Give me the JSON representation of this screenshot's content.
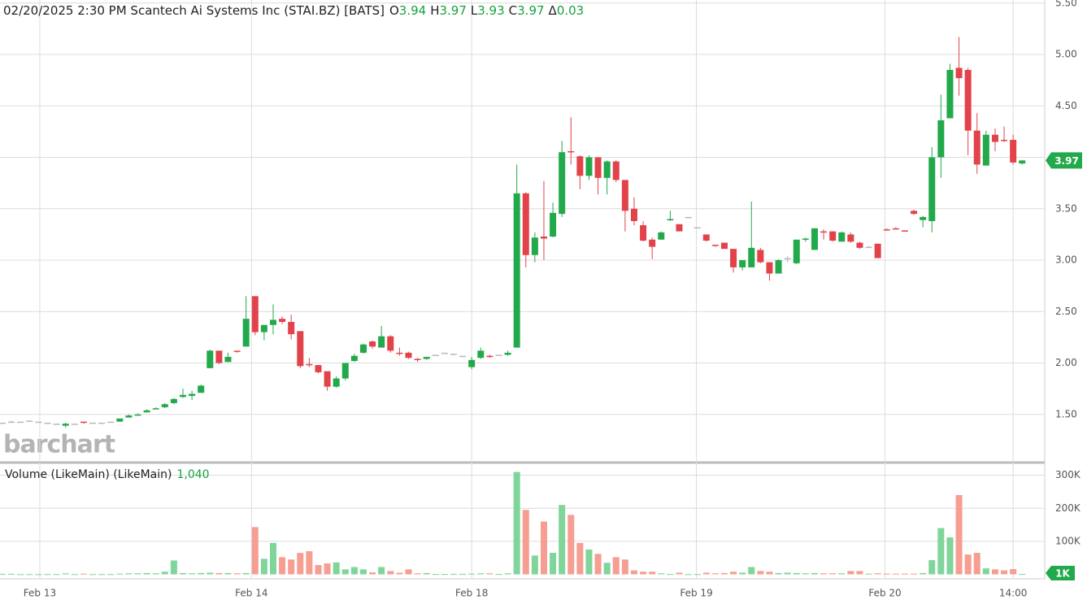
{
  "chart_data": {
    "type": "candlestick",
    "header": "02/20/2025 2:30 PM Scantech Ai Systems Inc (STAI.BZ) [BATS]",
    "ohlc_legend": [
      {
        "label": "O",
        "value": 3.94
      },
      {
        "label": "H",
        "value": 3.97
      },
      {
        "label": "L",
        "value": 3.93
      },
      {
        "label": "C",
        "value": 3.97
      },
      {
        "label": "Δ",
        "value": 0.03
      }
    ],
    "watermark": "barchart",
    "volume_legend": {
      "title": "Volume (LikeMain)  (LikeMain)",
      "value_label": "1,040"
    },
    "volume_badge": "1K",
    "up_color": "#22a94b",
    "down_color": "#e2434b",
    "flat_color": "#b8b8b8",
    "volume_up_color": "#7fd59a",
    "volume_down_color": "#f59e91",
    "grid": true,
    "open": [
      1.42,
      1.43,
      1.43,
      1.44,
      1.43,
      1.42,
      1.41,
      1.39,
      1.41,
      1.43,
      1.42,
      1.42,
      1.43,
      1.43,
      1.47,
      1.49,
      1.52,
      1.55,
      1.57,
      1.61,
      1.67,
      1.68,
      1.71,
      1.95,
      2.12,
      2.01,
      2.12,
      2.16,
      2.65,
      2.3,
      2.37,
      2.43,
      2.4,
      2.31,
      1.99,
      1.98,
      1.92,
      1.77,
      1.85,
      2.02,
      2.1,
      2.21,
      2.15,
      2.26,
      2.1,
      2.1,
      2.04,
      2.04,
      2.08,
      2.1,
      2.09,
      2.07,
      1.96,
      2.05,
      2.07,
      2.08,
      2.08,
      2.15,
      3.65,
      3.05,
      3.23,
      3.23,
      3.45,
      4.06,
      4.01,
      3.82,
      4.0,
      3.8,
      3.96,
      3.78,
      3.5,
      3.34,
      3.2,
      3.2,
      3.39,
      3.35,
      3.42,
      3.32,
      3.25,
      3.15,
      3.17,
      3.11,
      2.93,
      2.93,
      3.1,
      2.98,
      2.87,
      3.02,
      2.97,
      3.2,
      3.1,
      3.28,
      3.28,
      3.18,
      3.25,
      3.17,
      3.13,
      3.16,
      3.3,
      3.31,
      3.29,
      3.48,
      3.39,
      3.38,
      4.0,
      4.38,
      4.87,
      4.85,
      4.26,
      3.92,
      4.22,
      4.17,
      4.17,
      3.94
    ],
    "high": [
      1.42,
      1.44,
      1.43,
      1.44,
      1.43,
      1.42,
      1.41,
      1.42,
      1.41,
      1.43,
      1.42,
      1.42,
      1.43,
      1.46,
      1.5,
      1.51,
      1.55,
      1.57,
      1.61,
      1.66,
      1.75,
      1.73,
      1.79,
      2.13,
      2.12,
      2.1,
      2.12,
      2.65,
      2.65,
      2.37,
      2.57,
      2.45,
      2.47,
      2.31,
      2.05,
      1.98,
      1.92,
      1.87,
      2.0,
      2.09,
      2.19,
      2.22,
      2.36,
      2.27,
      2.15,
      2.11,
      2.05,
      2.06,
      2.08,
      2.1,
      2.09,
      2.07,
      2.06,
      2.15,
      2.08,
      2.08,
      2.12,
      3.93,
      3.66,
      3.27,
      3.77,
      3.56,
      4.16,
      4.39,
      4.02,
      4.02,
      4.0,
      3.97,
      3.97,
      3.78,
      3.61,
      3.38,
      3.22,
      3.28,
      3.48,
      3.35,
      3.42,
      3.32,
      3.25,
      3.15,
      3.17,
      3.11,
      3.0,
      3.57,
      3.12,
      2.98,
      3.01,
      3.04,
      3.19,
      3.22,
      3.31,
      3.3,
      3.28,
      3.28,
      3.27,
      3.18,
      3.14,
      3.16,
      3.31,
      3.32,
      3.29,
      3.49,
      3.43,
      4.1,
      4.61,
      4.91,
      5.17,
      4.87,
      4.43,
      4.26,
      4.28,
      4.3,
      4.22,
      3.97
    ],
    "low": [
      1.42,
      1.42,
      1.43,
      1.44,
      1.43,
      1.42,
      1.41,
      1.37,
      1.41,
      1.41,
      1.42,
      1.42,
      1.43,
      1.43,
      1.47,
      1.49,
      1.52,
      1.55,
      1.56,
      1.6,
      1.66,
      1.64,
      1.71,
      1.95,
      1.99,
      2.01,
      2.1,
      2.16,
      2.27,
      2.22,
      2.28,
      2.38,
      2.23,
      1.95,
      1.96,
      1.9,
      1.73,
      1.76,
      1.83,
      2.01,
      2.09,
      2.14,
      2.15,
      2.1,
      2.07,
      2.04,
      2.01,
      2.03,
      2.08,
      2.1,
      2.09,
      2.07,
      1.94,
      2.04,
      2.05,
      2.08,
      2.07,
      2.15,
      2.93,
      2.98,
      3.0,
      3.22,
      3.42,
      3.93,
      3.69,
      3.78,
      3.64,
      3.64,
      3.76,
      3.28,
      3.34,
      3.18,
      3.01,
      3.2,
      3.38,
      3.28,
      3.42,
      3.32,
      3.18,
      3.13,
      3.11,
      2.88,
      2.9,
      2.93,
      2.97,
      2.8,
      2.87,
      2.98,
      2.96,
      3.18,
      3.1,
      3.2,
      3.18,
      3.18,
      3.17,
      3.11,
      3.12,
      3.02,
      3.29,
      3.3,
      3.28,
      3.44,
      3.32,
      3.27,
      3.8,
      4.38,
      4.6,
      4.02,
      3.84,
      3.92,
      4.06,
      4.15,
      3.93,
      3.93
    ],
    "close": [
      1.42,
      1.43,
      1.43,
      1.44,
      1.43,
      1.42,
      1.41,
      1.41,
      1.41,
      1.42,
      1.42,
      1.42,
      1.43,
      1.46,
      1.49,
      1.5,
      1.54,
      1.56,
      1.6,
      1.65,
      1.69,
      1.7,
      1.78,
      2.12,
      2.0,
      2.06,
      2.11,
      2.43,
      2.3,
      2.37,
      2.42,
      2.4,
      2.28,
      1.97,
      1.98,
      1.91,
      1.77,
      1.85,
      2.0,
      2.07,
      2.18,
      2.16,
      2.26,
      2.12,
      2.09,
      2.05,
      2.03,
      2.06,
      2.08,
      2.1,
      2.09,
      2.07,
      2.03,
      2.12,
      2.06,
      2.08,
      2.1,
      3.65,
      3.05,
      3.22,
      3.21,
      3.46,
      4.05,
      4.05,
      3.82,
      4.0,
      3.8,
      3.96,
      3.78,
      3.48,
      3.38,
      3.19,
      3.13,
      3.27,
      3.4,
      3.28,
      3.42,
      3.32,
      3.19,
      3.14,
      3.11,
      2.93,
      3.0,
      3.12,
      2.98,
      2.87,
      3.0,
      3.02,
      3.2,
      3.21,
      3.31,
      3.27,
      3.19,
      3.27,
      3.18,
      3.12,
      3.13,
      3.02,
      3.29,
      3.3,
      3.28,
      3.45,
      3.42,
      4.0,
      4.36,
      4.85,
      4.77,
      4.26,
      3.93,
      4.22,
      4.15,
      4.16,
      3.95,
      3.97
    ],
    "volume": [
      1000,
      1500,
      500,
      500,
      500,
      500,
      500,
      3000,
      500,
      2000,
      500,
      500,
      500,
      2000,
      3000,
      3000,
      4000,
      3000,
      8000,
      42000,
      4000,
      3000,
      4000,
      5000,
      4000,
      4000,
      3000,
      4000,
      143000,
      47000,
      95000,
      52000,
      45000,
      65000,
      70000,
      28000,
      33000,
      36000,
      15000,
      22000,
      15000,
      6000,
      22000,
      10000,
      5000,
      15000,
      3000,
      4000,
      1000,
      1000,
      1000,
      1000,
      2000,
      3000,
      3000,
      1000,
      3000,
      310000,
      195000,
      57000,
      160000,
      65000,
      210000,
      180000,
      95000,
      75000,
      62000,
      35000,
      52000,
      45000,
      12000,
      8000,
      8000,
      3000,
      1000,
      5000,
      500,
      500,
      5000,
      3000,
      4000,
      8000,
      5000,
      22000,
      10000,
      8000,
      4000,
      5000,
      4000,
      3000,
      4000,
      3000,
      3000,
      3000,
      10000,
      10000,
      2000,
      3000,
      2000,
      2000,
      2000,
      2000,
      4000,
      43000,
      140000,
      112000,
      240000,
      60000,
      65000,
      18000,
      15000,
      12000,
      16000,
      1040
    ],
    "xlim": [
      -0.27,
      115.5
    ],
    "xticks": [
      {
        "value": 4.14,
        "label": "Feb 13"
      },
      {
        "value": 27.6,
        "label": "Feb 14"
      },
      {
        "value": 52.0,
        "label": "Feb 18"
      },
      {
        "value": 76.9,
        "label": "Feb 19"
      },
      {
        "value": 97.8,
        "label": "Feb 20"
      },
      {
        "value": 112.0,
        "label": "14:00"
      }
    ],
    "ylim": [
      1.04,
      5.53
    ],
    "yticks": [
      {
        "value": 1.5,
        "label": "1.50"
      },
      {
        "value": 2.0,
        "label": "2.00"
      },
      {
        "value": 2.5,
        "label": "2.50"
      },
      {
        "value": 3.0,
        "label": "3.00"
      },
      {
        "value": 3.5,
        "label": "3.50"
      },
      {
        "value": 4.0,
        "label": "4.00"
      },
      {
        "value": 4.5,
        "label": "4.50"
      },
      {
        "value": 5.0,
        "label": "5.00"
      },
      {
        "value": 5.5,
        "label": "5.50"
      }
    ],
    "volume_ylim": [
      0,
      336000
    ],
    "volume_yticks": [
      {
        "value": 100000,
        "label": "100K"
      },
      {
        "value": 200000,
        "label": "200K"
      },
      {
        "value": 300000,
        "label": "300K"
      }
    ]
  }
}
